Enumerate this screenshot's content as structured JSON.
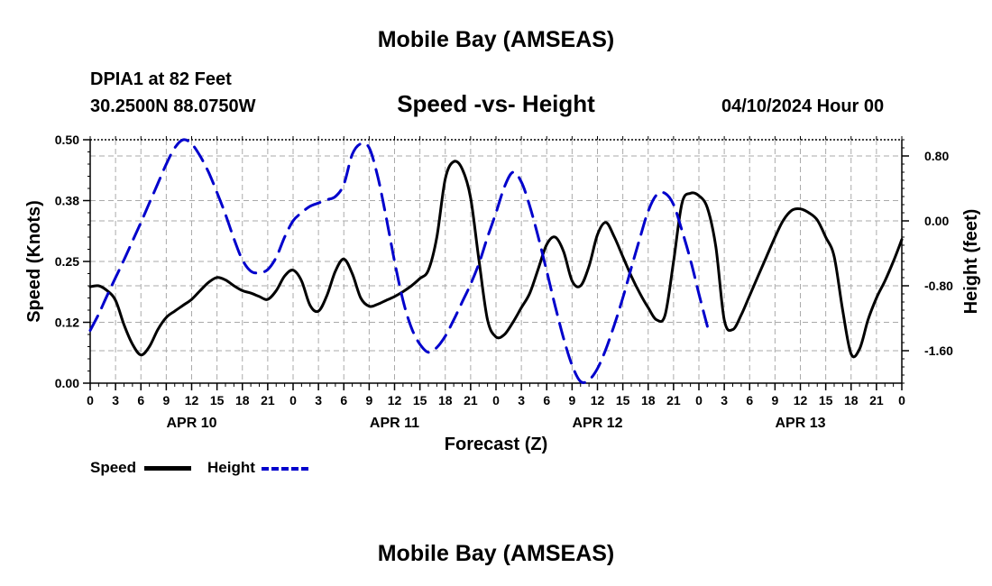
{
  "title": "Mobile Bay (AMSEAS)",
  "title_repeat": "Mobile Bay (AMSEAS)",
  "station": "DPIA1 at 82 Feet",
  "coordinates": "30.2500N  88.0750W",
  "subtitle": "Speed -vs- Height",
  "datetime": "04/10/2024 Hour 00",
  "legend": {
    "speed_label": "Speed",
    "height_label": "Height"
  },
  "chart_data": {
    "type": "line",
    "title": "Speed -vs- Height",
    "xlabel": "Forecast (Z)",
    "ylabel_left": "Speed (Knots)",
    "ylabel_right": "Height (feet)",
    "x_range_hours": [
      0,
      96
    ],
    "y_left_range": [
      0,
      0.5
    ],
    "y_right_range": [
      -2.0,
      1.0
    ],
    "y_left_ticks": [
      {
        "value": 0.0,
        "label": "0.00"
      },
      {
        "value": 0.125,
        "label": "0.12"
      },
      {
        "value": 0.25,
        "label": "0.25"
      },
      {
        "value": 0.375,
        "label": "0.38"
      },
      {
        "value": 0.5,
        "label": "0.50"
      }
    ],
    "y_right_ticks": [
      {
        "value": 0.8,
        "label": "0.80"
      },
      {
        "value": 0.0,
        "label": "0.00"
      },
      {
        "value": -0.8,
        "label": "-0.80"
      },
      {
        "value": -1.6,
        "label": "-1.60"
      }
    ],
    "x_tick_labels": [
      "0",
      "3",
      "6",
      "9",
      "12",
      "15",
      "18",
      "21",
      "0",
      "3",
      "6",
      "9",
      "12",
      "15",
      "18",
      "21",
      "0",
      "3",
      "6",
      "9",
      "12",
      "15",
      "18",
      "21",
      "0",
      "3",
      "6",
      "9",
      "12",
      "15",
      "18",
      "21",
      "0"
    ],
    "day_labels": [
      {
        "hour": 12,
        "label": "APR 10"
      },
      {
        "hour": 36,
        "label": "APR 11"
      },
      {
        "hour": 60,
        "label": "APR 12"
      },
      {
        "hour": 84,
        "label": "APR 13"
      }
    ],
    "series": [
      {
        "name": "Speed",
        "color": "#000000",
        "axis": "left",
        "style": "solid",
        "points": [
          [
            0,
            0.198
          ],
          [
            1,
            0.2
          ],
          [
            2,
            0.19
          ],
          [
            3,
            0.17
          ],
          [
            4,
            0.12
          ],
          [
            5,
            0.08
          ],
          [
            6,
            0.058
          ],
          [
            7,
            0.075
          ],
          [
            8,
            0.11
          ],
          [
            9,
            0.135
          ],
          [
            10,
            0.148
          ],
          [
            11,
            0.16
          ],
          [
            12,
            0.172
          ],
          [
            13,
            0.19
          ],
          [
            14,
            0.207
          ],
          [
            15,
            0.217
          ],
          [
            16,
            0.212
          ],
          [
            17,
            0.2
          ],
          [
            18,
            0.19
          ],
          [
            19,
            0.185
          ],
          [
            20,
            0.178
          ],
          [
            21,
            0.172
          ],
          [
            22,
            0.19
          ],
          [
            23,
            0.22
          ],
          [
            24,
            0.232
          ],
          [
            25,
            0.21
          ],
          [
            26,
            0.16
          ],
          [
            27,
            0.148
          ],
          [
            28,
            0.18
          ],
          [
            29,
            0.23
          ],
          [
            30,
            0.255
          ],
          [
            31,
            0.225
          ],
          [
            32,
            0.175
          ],
          [
            33,
            0.158
          ],
          [
            34,
            0.162
          ],
          [
            35,
            0.17
          ],
          [
            36,
            0.178
          ],
          [
            37,
            0.188
          ],
          [
            38,
            0.2
          ],
          [
            39,
            0.215
          ],
          [
            40,
            0.232
          ],
          [
            41,
            0.3
          ],
          [
            42,
            0.42
          ],
          [
            43,
            0.455
          ],
          [
            44,
            0.44
          ],
          [
            45,
            0.38
          ],
          [
            46,
            0.25
          ],
          [
            47,
            0.13
          ],
          [
            48,
            0.095
          ],
          [
            49,
            0.1
          ],
          [
            50,
            0.125
          ],
          [
            51,
            0.155
          ],
          [
            52,
            0.185
          ],
          [
            53,
            0.235
          ],
          [
            54,
            0.285
          ],
          [
            55,
            0.3
          ],
          [
            56,
            0.27
          ],
          [
            57,
            0.21
          ],
          [
            58,
            0.2
          ],
          [
            59,
            0.24
          ],
          [
            60,
            0.305
          ],
          [
            61,
            0.33
          ],
          [
            62,
            0.3
          ],
          [
            63,
            0.26
          ],
          [
            64,
            0.22
          ],
          [
            65,
            0.185
          ],
          [
            66,
            0.155
          ],
          [
            67,
            0.13
          ],
          [
            68,
            0.14
          ],
          [
            69,
            0.25
          ],
          [
            70,
            0.37
          ],
          [
            71,
            0.39
          ],
          [
            72,
            0.385
          ],
          [
            73,
            0.36
          ],
          [
            74,
            0.28
          ],
          [
            75,
            0.13
          ],
          [
            76,
            0.11
          ],
          [
            77,
            0.14
          ],
          [
            78,
            0.18
          ],
          [
            79,
            0.22
          ],
          [
            80,
            0.26
          ],
          [
            81,
            0.3
          ],
          [
            82,
            0.335
          ],
          [
            83,
            0.355
          ],
          [
            84,
            0.358
          ],
          [
            85,
            0.35
          ],
          [
            86,
            0.335
          ],
          [
            87,
            0.3
          ],
          [
            88,
            0.26
          ],
          [
            89,
            0.15
          ],
          [
            90,
            0.06
          ],
          [
            91,
            0.07
          ],
          [
            92,
            0.13
          ],
          [
            93,
            0.175
          ],
          [
            94,
            0.21
          ],
          [
            95,
            0.25
          ],
          [
            96,
            0.295
          ]
        ]
      },
      {
        "name": "Height",
        "color": "#0000cc",
        "axis": "right",
        "style": "dashed",
        "points": [
          [
            0,
            -1.35
          ],
          [
            1,
            -1.15
          ],
          [
            2,
            -0.92
          ],
          [
            3,
            -0.7
          ],
          [
            4,
            -0.48
          ],
          [
            5,
            -0.25
          ],
          [
            6,
            -0.02
          ],
          [
            7,
            0.22
          ],
          [
            8,
            0.46
          ],
          [
            9,
            0.7
          ],
          [
            10,
            0.9
          ],
          [
            11,
            1.0
          ],
          [
            12,
            0.95
          ],
          [
            13,
            0.8
          ],
          [
            14,
            0.6
          ],
          [
            15,
            0.35
          ],
          [
            16,
            0.08
          ],
          [
            17,
            -0.22
          ],
          [
            18,
            -0.48
          ],
          [
            19,
            -0.62
          ],
          [
            20,
            -0.64
          ],
          [
            21,
            -0.6
          ],
          [
            22,
            -0.45
          ],
          [
            23,
            -0.2
          ],
          [
            24,
            0.0
          ],
          [
            25,
            0.1
          ],
          [
            26,
            0.18
          ],
          [
            27,
            0.22
          ],
          [
            28,
            0.26
          ],
          [
            29,
            0.3
          ],
          [
            30,
            0.45
          ],
          [
            31,
            0.82
          ],
          [
            32,
            0.95
          ],
          [
            33,
            0.9
          ],
          [
            34,
            0.55
          ],
          [
            35,
            0.05
          ],
          [
            36,
            -0.5
          ],
          [
            37,
            -0.98
          ],
          [
            38,
            -1.32
          ],
          [
            39,
            -1.52
          ],
          [
            40,
            -1.62
          ],
          [
            41,
            -1.56
          ],
          [
            42,
            -1.42
          ],
          [
            43,
            -1.22
          ],
          [
            44,
            -1.0
          ],
          [
            45,
            -0.78
          ],
          [
            46,
            -0.52
          ],
          [
            47,
            -0.2
          ],
          [
            48,
            0.1
          ],
          [
            49,
            0.42
          ],
          [
            50,
            0.6
          ],
          [
            51,
            0.48
          ],
          [
            52,
            0.18
          ],
          [
            53,
            -0.2
          ],
          [
            54,
            -0.62
          ],
          [
            55,
            -1.05
          ],
          [
            56,
            -1.45
          ],
          [
            57,
            -1.78
          ],
          [
            58,
            -1.98
          ],
          [
            59,
            -1.96
          ],
          [
            60,
            -1.82
          ],
          [
            61,
            -1.58
          ],
          [
            62,
            -1.28
          ],
          [
            63,
            -0.95
          ],
          [
            64,
            -0.58
          ],
          [
            65,
            -0.22
          ],
          [
            66,
            0.12
          ],
          [
            67,
            0.32
          ],
          [
            68,
            0.34
          ],
          [
            69,
            0.2
          ],
          [
            70,
            -0.12
          ],
          [
            71,
            -0.48
          ],
          [
            72,
            -0.9
          ],
          [
            73,
            -1.3
          ]
        ]
      }
    ]
  }
}
